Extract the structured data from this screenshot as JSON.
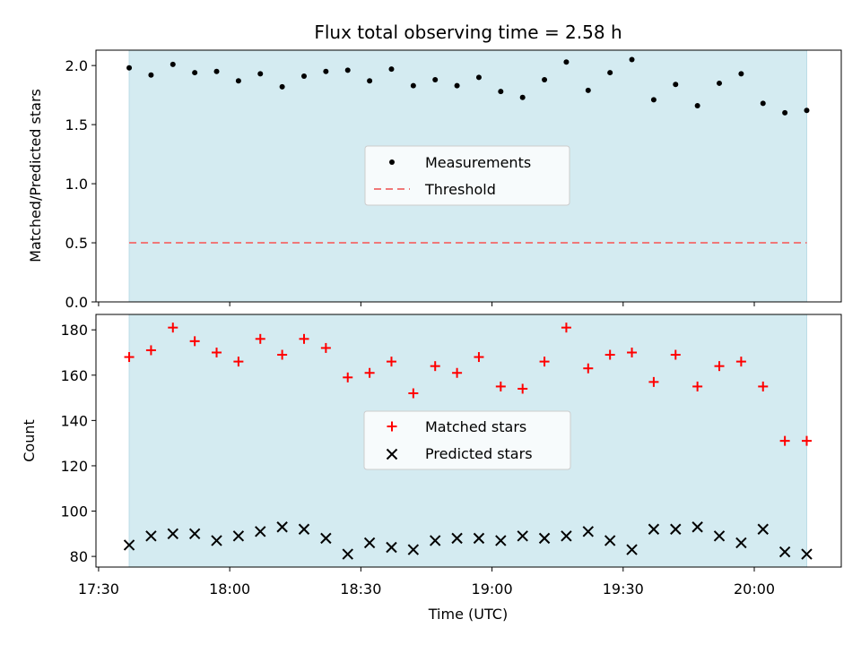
{
  "chart_data": {
    "title": "Flux total observing time = 2.58 h",
    "xlabel": "Time (UTC)",
    "x_ticks": [
      "17:30",
      "18:00",
      "18:30",
      "19:00",
      "19:30",
      "20:00"
    ],
    "x_tick_minutes": [
      1050,
      1080,
      1110,
      1140,
      1170,
      1200
    ],
    "xlim_minutes": [
      1049.4,
      1219.9
    ],
    "observing_window_minutes": [
      1057,
      1212
    ],
    "times_minutes": [
      1057,
      1062,
      1067,
      1072,
      1077,
      1082,
      1087,
      1092,
      1097,
      1102,
      1107,
      1112,
      1117,
      1122,
      1127,
      1132,
      1137,
      1142,
      1147,
      1152,
      1157,
      1162,
      1167,
      1172,
      1177,
      1182,
      1187,
      1192,
      1197,
      1202,
      1207,
      1212
    ],
    "top": {
      "type": "scatter",
      "ylabel": "Matched/Predicted stars",
      "ylim": [
        0,
        2.13
      ],
      "y_ticks": [
        "0.0",
        "0.5",
        "1.0",
        "1.5",
        "2.0"
      ],
      "y_tick_values": [
        0,
        0.5,
        1.0,
        1.5,
        2.0
      ],
      "threshold": 0.5,
      "series": [
        {
          "name": "Measurements",
          "values": [
            1.98,
            1.92,
            2.01,
            1.94,
            1.95,
            1.87,
            1.93,
            1.82,
            1.91,
            1.95,
            1.96,
            1.87,
            1.97,
            1.83,
            1.88,
            1.83,
            1.9,
            1.78,
            1.73,
            1.88,
            2.03,
            1.79,
            1.94,
            2.05,
            1.71,
            1.84,
            1.66,
            1.85,
            1.93,
            1.68,
            1.6,
            1.62
          ]
        }
      ],
      "legend": [
        "Measurements",
        "Threshold"
      ]
    },
    "bottom": {
      "type": "scatter",
      "ylabel": "Count",
      "ylim": [
        75.3,
        186.8
      ],
      "y_ticks": [
        "80",
        "100",
        "120",
        "140",
        "160",
        "180"
      ],
      "y_tick_values": [
        80,
        100,
        120,
        140,
        160,
        180
      ],
      "series": [
        {
          "name": "Matched stars",
          "values": [
            168,
            171,
            181,
            175,
            170,
            166,
            176,
            169,
            176,
            172,
            159,
            161,
            166,
            152,
            164,
            161,
            168,
            155,
            154,
            166,
            181,
            163,
            169,
            170,
            157,
            169,
            155,
            164,
            166,
            155,
            131,
            131
          ]
        },
        {
          "name": "Predicted stars",
          "values": [
            85,
            89,
            90,
            90,
            87,
            89,
            91,
            93,
            92,
            88,
            81,
            86,
            84,
            83,
            87,
            88,
            88,
            87,
            89,
            88,
            89,
            91,
            87,
            83,
            92,
            92,
            93,
            89,
            86,
            92,
            82,
            81
          ]
        }
      ],
      "legend": [
        "Matched stars",
        "Predicted stars"
      ]
    },
    "colors": {
      "window": "#d4ebf1",
      "measurement": "#000000",
      "threshold": "#f07878",
      "matched": "#ff0000",
      "predicted": "#000000"
    }
  }
}
